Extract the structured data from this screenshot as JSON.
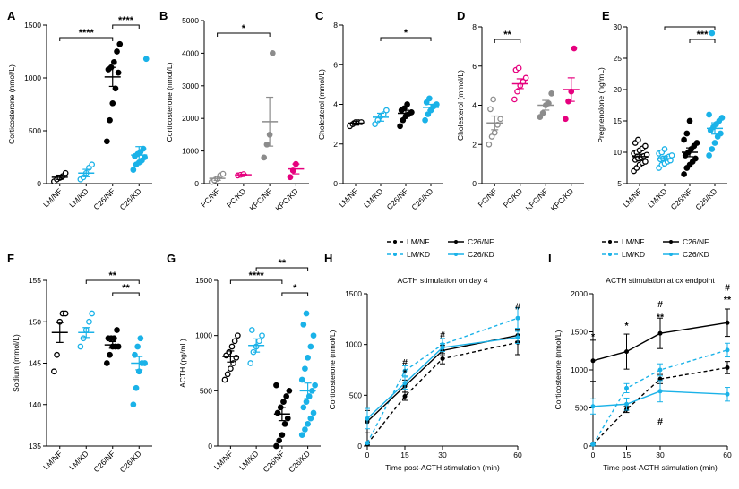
{
  "colors": {
    "black": "#000000",
    "cyan": "#1ab2e8",
    "gray": "#8c8c8c",
    "magenta": "#e6007e"
  },
  "chart_data": [
    {
      "panel": "A",
      "type": "scatter",
      "ylabel": "Corticosterone (nmol/L)",
      "ylim": [
        0,
        1500
      ],
      "yticks": [
        0,
        500,
        1000,
        1500
      ],
      "groups": [
        {
          "name": "LM/NF",
          "color": "black",
          "filled": false,
          "mean": 60,
          "sem": 20,
          "values": [
            20,
            40,
            55,
            70,
            100
          ]
        },
        {
          "name": "LM/KD",
          "color": "cyan",
          "filled": false,
          "mean": 100,
          "sem": 35,
          "values": [
            40,
            60,
            100,
            150,
            180
          ]
        },
        {
          "name": "C26/NF",
          "color": "black",
          "filled": true,
          "mean": 1010,
          "sem": 90,
          "values": [
            400,
            600,
            760,
            900,
            1050,
            1080,
            1100,
            1150,
            1250,
            1320
          ]
        },
        {
          "name": "C26/KD",
          "color": "cyan",
          "filled": true,
          "mean": 270,
          "sem": 80,
          "values": [
            130,
            180,
            200,
            220,
            250,
            260,
            280,
            300,
            330,
            1180
          ]
        }
      ],
      "significance": [
        {
          "from": 0,
          "to": 2,
          "label": "****"
        },
        {
          "from": 2,
          "to": 3,
          "label": "****"
        }
      ]
    },
    {
      "panel": "B",
      "type": "scatter",
      "ylabel": "Corticosterone (nmol/L)",
      "ylim": [
        0,
        5000
      ],
      "yticks": [
        0,
        1000,
        2000,
        3000,
        4000,
        5000
      ],
      "groups": [
        {
          "name": "PC/NF",
          "color": "gray",
          "filled": false,
          "mean": 160,
          "sem": 60,
          "values": [
            50,
            100,
            150,
            250,
            300
          ]
        },
        {
          "name": "PC/KD",
          "color": "magenta",
          "filled": false,
          "mean": 270,
          "sem": 20,
          "values": [
            250,
            270,
            290
          ]
        },
        {
          "name": "KPC/NF",
          "color": "gray",
          "filled": true,
          "mean": 1900,
          "sem": 750,
          "values": [
            800,
            1200,
            1500,
            4000
          ]
        },
        {
          "name": "KPC/KD",
          "color": "magenta",
          "filled": true,
          "mean": 450,
          "sem": 150,
          "values": [
            200,
            400,
            600
          ]
        }
      ],
      "significance": [
        {
          "from": 0,
          "to": 2,
          "label": "*"
        }
      ]
    },
    {
      "panel": "C",
      "type": "scatter",
      "ylabel": "Cholesterol (mmol/L)",
      "ylim": [
        0,
        8
      ],
      "yticks": [
        0,
        2,
        4,
        6,
        8
      ],
      "groups": [
        {
          "name": "LM/NF",
          "color": "black",
          "filled": false,
          "mean": 3.05,
          "sem": 0.1,
          "values": [
            2.9,
            3.0,
            3.1,
            3.1,
            3.1
          ]
        },
        {
          "name": "LM/KD",
          "color": "cyan",
          "filled": false,
          "mean": 3.35,
          "sem": 0.2,
          "values": [
            3.0,
            3.2,
            3.4,
            3.5,
            3.7
          ]
        },
        {
          "name": "C26/NF",
          "color": "black",
          "filled": true,
          "mean": 3.55,
          "sem": 0.15,
          "values": [
            2.9,
            3.2,
            3.4,
            3.5,
            3.6,
            3.7,
            3.8,
            4.0
          ]
        },
        {
          "name": "C26/KD",
          "color": "cyan",
          "filled": true,
          "mean": 3.85,
          "sem": 0.15,
          "values": [
            3.2,
            3.5,
            3.7,
            3.9,
            4.0,
            4.1,
            4.3
          ]
        }
      ],
      "significance": [
        {
          "from": 1,
          "to": 3,
          "label": "*"
        }
      ]
    },
    {
      "panel": "D",
      "type": "scatter",
      "ylabel": "Cholesterol (mmol/L)",
      "ylim": [
        0,
        8
      ],
      "yticks": [
        0,
        2,
        4,
        6,
        8
      ],
      "groups": [
        {
          "name": "PC/NF",
          "color": "gray",
          "filled": false,
          "mean": 3.1,
          "sem": 0.35,
          "values": [
            2.0,
            2.4,
            2.6,
            3.0,
            3.3,
            3.8,
            4.3
          ]
        },
        {
          "name": "PC/KD",
          "color": "magenta",
          "filled": false,
          "mean": 5.1,
          "sem": 0.25,
          "values": [
            4.3,
            4.7,
            5.0,
            5.2,
            5.4,
            5.8,
            5.9
          ]
        },
        {
          "name": "KPC/NF",
          "color": "gray",
          "filled": true,
          "mean": 4.0,
          "sem": 0.25,
          "values": [
            3.4,
            3.6,
            4.0,
            4.1,
            4.6
          ]
        },
        {
          "name": "KPC/KD",
          "color": "magenta",
          "filled": true,
          "mean": 4.8,
          "sem": 0.6,
          "values": [
            3.3,
            4.2,
            4.7,
            6.9
          ]
        }
      ],
      "significance": [
        {
          "from": 0,
          "to": 1,
          "label": "**"
        }
      ]
    },
    {
      "panel": "E",
      "type": "scatter",
      "ylabel": "Pregnenolone (ng/mL)",
      "ylim": [
        5,
        30
      ],
      "yticks": [
        5,
        10,
        15,
        20,
        25,
        30
      ],
      "groups": [
        {
          "name": "LM/NF",
          "color": "black",
          "filled": false,
          "mean": 9.3,
          "sem": 0.4,
          "values": [
            7.0,
            7.5,
            8.0,
            8.3,
            8.5,
            8.8,
            9.0,
            9.2,
            9.4,
            9.6,
            9.8,
            10.0,
            10.3,
            10.6,
            11.0,
            11.5,
            12.0
          ]
        },
        {
          "name": "LM/KD",
          "color": "cyan",
          "filled": false,
          "mean": 9.0,
          "sem": 0.3,
          "values": [
            7.5,
            8.0,
            8.2,
            8.5,
            8.7,
            8.9,
            9.0,
            9.1,
            9.3,
            9.5,
            9.8,
            10.0,
            10.5
          ]
        },
        {
          "name": "C26/NF",
          "color": "black",
          "filled": true,
          "mean": 10.0,
          "sem": 0.7,
          "values": [
            6.5,
            7.5,
            8.0,
            8.5,
            9.0,
            9.5,
            10.0,
            10.5,
            11.0,
            11.5,
            12.0,
            13.0,
            15.0
          ]
        },
        {
          "name": "C26/KD",
          "color": "cyan",
          "filled": true,
          "mean": 13.8,
          "sem": 0.9,
          "values": [
            9.5,
            10.5,
            11.5,
            12.5,
            13.0,
            13.5,
            14.0,
            14.5,
            15.0,
            15.5,
            16.0,
            29.0
          ]
        }
      ],
      "significance": [
        {
          "from": 2,
          "to": 3,
          "label": "***"
        },
        {
          "from": 1,
          "to": 3,
          "label": ""
        }
      ]
    },
    {
      "panel": "F",
      "type": "scatter",
      "ylabel": "Sodium (mmol/L)",
      "ylim": [
        135,
        155
      ],
      "yticks": [
        135,
        140,
        145,
        150,
        155
      ],
      "groups": [
        {
          "name": "LM/NF",
          "color": "black",
          "filled": false,
          "mean": 148.7,
          "sem": 1.2,
          "values": [
            144,
            146,
            150,
            151,
            151
          ]
        },
        {
          "name": "LM/KD",
          "color": "cyan",
          "filled": false,
          "mean": 148.7,
          "sem": 0.6,
          "values": [
            147,
            148,
            149,
            150,
            151
          ]
        },
        {
          "name": "C26/NF",
          "color": "black",
          "filled": true,
          "mean": 147.2,
          "sem": 0.4,
          "values": [
            145,
            146,
            147,
            147,
            147,
            148,
            148,
            148,
            149
          ]
        },
        {
          "name": "C26/KD",
          "color": "cyan",
          "filled": true,
          "mean": 145.0,
          "sem": 0.8,
          "values": [
            140,
            142,
            144,
            145,
            145,
            146,
            147,
            148
          ]
        }
      ],
      "significance": [
        {
          "from": 2,
          "to": 3,
          "label": "**"
        },
        {
          "from": 1,
          "to": 3,
          "label": "**"
        }
      ]
    },
    {
      "panel": "G",
      "type": "scatter",
      "ylabel": "ACTH (pg/mL)",
      "ylim": [
        0,
        1500
      ],
      "yticks": [
        0,
        500,
        1000,
        1500
      ],
      "groups": [
        {
          "name": "LM/NF",
          "color": "black",
          "filled": false,
          "mean": 810,
          "sem": 50,
          "values": [
            600,
            650,
            700,
            750,
            800,
            820,
            850,
            900,
            950,
            1000
          ]
        },
        {
          "name": "LM/KD",
          "color": "cyan",
          "filled": false,
          "mean": 910,
          "sem": 60,
          "values": [
            750,
            850,
            900,
            950,
            1000,
            1050
          ]
        },
        {
          "name": "C26/NF",
          "color": "black",
          "filled": true,
          "mean": 290,
          "sem": 60,
          "values": [
            0,
            50,
            100,
            200,
            250,
            300,
            350,
            400,
            450,
            500,
            550
          ]
        },
        {
          "name": "C26/KD",
          "color": "cyan",
          "filled": true,
          "mean": 500,
          "sem": 70,
          "values": [
            100,
            150,
            200,
            250,
            300,
            350,
            400,
            450,
            500,
            550,
            600,
            700,
            800,
            900,
            1000,
            1100,
            1200
          ]
        }
      ],
      "significance": [
        {
          "from": 2,
          "to": 3,
          "label": "*"
        },
        {
          "from": 0,
          "to": 2,
          "label": "****"
        },
        {
          "from": 1,
          "to": 3,
          "label": "**"
        }
      ]
    },
    {
      "panel": "H",
      "type": "line",
      "title": "ACTH stimulation on day 4",
      "xlabel": "Time post-ACTH stimulation (min)",
      "ylabel": "Corticosterone (nmol/L)",
      "x": [
        0,
        15,
        30,
        60
      ],
      "xticks": [
        0,
        15,
        30,
        60
      ],
      "ylim": [
        0,
        1500
      ],
      "yticks": [
        0,
        500,
        1000,
        1500
      ],
      "series": [
        {
          "name": "LM/NF",
          "color": "black",
          "dashed": true,
          "values": [
            20,
            490,
            860,
            1020
          ],
          "sem": [
            10,
            40,
            50,
            120
          ]
        },
        {
          "name": "LM/KD",
          "color": "cyan",
          "dashed": true,
          "values": [
            30,
            740,
            1000,
            1260
          ],
          "sem": [
            10,
            50,
            60,
            100
          ]
        },
        {
          "name": "C26/NF",
          "color": "black",
          "dashed": false,
          "values": [
            240,
            590,
            940,
            1090
          ],
          "sem": [
            110,
            60,
            50,
            60
          ]
        },
        {
          "name": "C26/KD",
          "color": "cyan",
          "dashed": false,
          "values": [
            270,
            620,
            970,
            1070
          ],
          "sem": [
            100,
            60,
            40,
            60
          ]
        }
      ],
      "annotations": [
        {
          "x": 15,
          "y": 830,
          "label": "#"
        },
        {
          "x": 15,
          "y": 730,
          "label": "*"
        },
        {
          "x": 30,
          "y": 1100,
          "label": "#"
        },
        {
          "x": 60,
          "y": 1380,
          "label": "#"
        }
      ]
    },
    {
      "panel": "I",
      "type": "line",
      "title": "ACTH stimulation at cx endpoint",
      "xlabel": "Time post-ACTH stimulation (min)",
      "ylabel": "Corticosterone (nmol/L)",
      "x": [
        0,
        15,
        30,
        60
      ],
      "xticks": [
        0,
        15,
        30,
        60
      ],
      "ylim": [
        0,
        2000
      ],
      "yticks": [
        0,
        500,
        1000,
        1500,
        2000
      ],
      "series": [
        {
          "name": "LM/NF",
          "color": "black",
          "dashed": true,
          "values": [
            20,
            480,
            880,
            1030
          ],
          "sem": [
            10,
            40,
            60,
            80
          ]
        },
        {
          "name": "LM/KD",
          "color": "cyan",
          "dashed": true,
          "values": [
            20,
            760,
            1000,
            1260
          ],
          "sem": [
            10,
            60,
            80,
            90
          ]
        },
        {
          "name": "C26/NF",
          "color": "black",
          "dashed": false,
          "values": [
            1120,
            1240,
            1480,
            1620
          ],
          "sem": [
            270,
            230,
            200,
            180
          ]
        },
        {
          "name": "C26/KD",
          "color": "cyan",
          "dashed": false,
          "values": [
            520,
            550,
            720,
            680
          ],
          "sem": [
            100,
            80,
            140,
            90
          ]
        }
      ],
      "annotations": [
        {
          "x": 0,
          "y": 1450,
          "label": "*"
        },
        {
          "x": 15,
          "y": 1590,
          "label": "*"
        },
        {
          "x": 30,
          "y": 1870,
          "label": "#"
        },
        {
          "x": 30,
          "y": 1700,
          "label": "**"
        },
        {
          "x": 60,
          "y": 2090,
          "label": "#"
        },
        {
          "x": 60,
          "y": 1930,
          "label": "**"
        },
        {
          "x": 30,
          "y": 330,
          "label": "#"
        }
      ]
    }
  ],
  "legend": [
    {
      "name": "LM/NF",
      "color": "black",
      "dashed": true
    },
    {
      "name": "C26/NF",
      "color": "black",
      "dashed": false
    },
    {
      "name": "LM/KD",
      "color": "cyan",
      "dashed": true
    },
    {
      "name": "C26/KD",
      "color": "cyan",
      "dashed": false
    }
  ]
}
